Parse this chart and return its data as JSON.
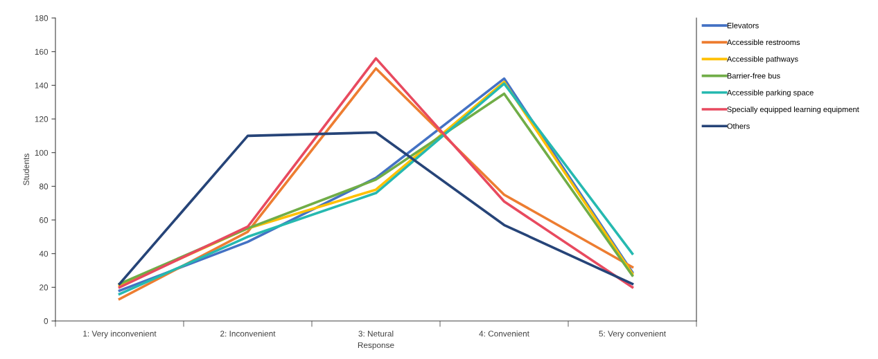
{
  "chart_data": {
    "type": "line",
    "xlabel": "Response",
    "ylabel": "Students",
    "categories": [
      "1: Very inconvenient",
      "2: Inconvenient",
      "3: Netural",
      "4: Convenient",
      "5: Very convenient"
    ],
    "ylim": [
      0,
      180
    ],
    "yticks": [
      0,
      20,
      40,
      60,
      80,
      100,
      120,
      140,
      160,
      180
    ],
    "grid": false,
    "legend": "right",
    "marker": "none",
    "line_style": "solid",
    "series": [
      {
        "name": "Elevators",
        "color": "#4472c4",
        "values": [
          18,
          47,
          85,
          144,
          29
        ]
      },
      {
        "name": "Accessible restrooms",
        "color": "#ed7d31",
        "values": [
          13,
          53,
          150,
          75,
          32
        ]
      },
      {
        "name": "Accessible pathways",
        "color": "#ffc000",
        "values": [
          21,
          55,
          78,
          142,
          28
        ]
      },
      {
        "name": "Barrier-free bus",
        "color": "#70ad47",
        "values": [
          22,
          55,
          84,
          135,
          27
        ]
      },
      {
        "name": "Accessible parking space",
        "color": "#26b9b0",
        "values": [
          16,
          50,
          76,
          141,
          40
        ]
      },
      {
        "name": "Specially equipped learning equipment",
        "color": "#e84a5f",
        "values": [
          20,
          56,
          156,
          71,
          20
        ]
      },
      {
        "name": "Others",
        "color": "#264478",
        "values": [
          22,
          110,
          112,
          57,
          22
        ]
      }
    ]
  }
}
